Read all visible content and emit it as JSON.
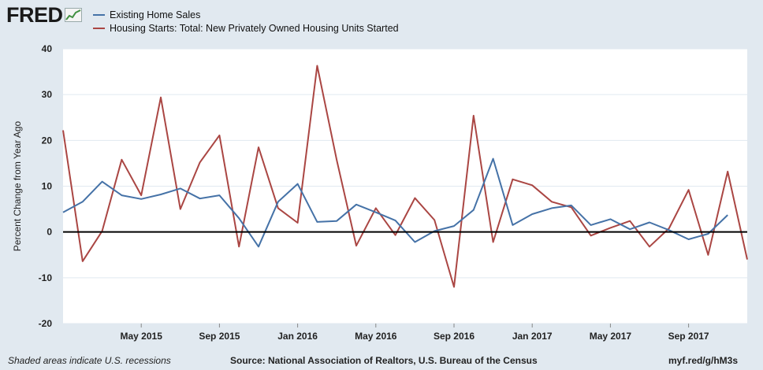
{
  "logo": {
    "text": "FRED"
  },
  "chart_data": {
    "type": "line",
    "title": "",
    "ylabel": "Percent Change from Year Ago",
    "xlabel": "",
    "ylim": [
      -20,
      40
    ],
    "y_ticks": [
      40,
      30,
      20,
      10,
      0,
      -10,
      -20
    ],
    "x_ticks": [
      "May 2015",
      "Sep 2015",
      "Jan 2016",
      "May 2016",
      "Sep 2016",
      "Jan 2017",
      "May 2017",
      "Sep 2017"
    ],
    "x_tick_months": [
      4,
      8,
      12,
      16,
      20,
      24,
      28,
      32
    ],
    "x_start": "Jan 2015",
    "x_end": "Dec 2017",
    "series": [
      {
        "name": "Existing Home Sales",
        "color": "#4572a7",
        "start_month": 0,
        "values": [
          4.3,
          6.6,
          11.0,
          8.0,
          7.2,
          8.2,
          9.5,
          7.3,
          8.0,
          3.0,
          -3.2,
          6.6,
          10.5,
          2.2,
          2.4,
          6.0,
          4.3,
          2.5,
          -2.2,
          0.2,
          1.3,
          4.8,
          16.0,
          1.5,
          3.9,
          5.2,
          5.8,
          1.5,
          2.8,
          0.6,
          2.1,
          0.4,
          -1.6,
          -0.4,
          3.7
        ]
      },
      {
        "name": "Housing Starts: Total: New Privately Owned Housing Units Started",
        "color": "#aa4643",
        "start_month": 0,
        "values": [
          22.2,
          -6.4,
          0.2,
          15.8,
          8.0,
          29.4,
          5.0,
          15.2,
          21.1,
          -3.2,
          18.5,
          5.2,
          2.0,
          36.3,
          15.7,
          -3.0,
          5.2,
          -0.7,
          7.4,
          2.6,
          -12.0,
          25.4,
          -2.2,
          11.5,
          10.2,
          6.6,
          5.4,
          -0.8,
          0.9,
          2.4,
          -3.2,
          0.8,
          9.2,
          -5.0,
          13.2,
          -6.0
        ]
      }
    ],
    "recessions": []
  },
  "footer": {
    "left": "Shaded areas indicate U.S. recessions",
    "source": "Source: National Association of Realtors, U.S. Bureau of the Census",
    "url": "myf.red/g/hM3s"
  }
}
